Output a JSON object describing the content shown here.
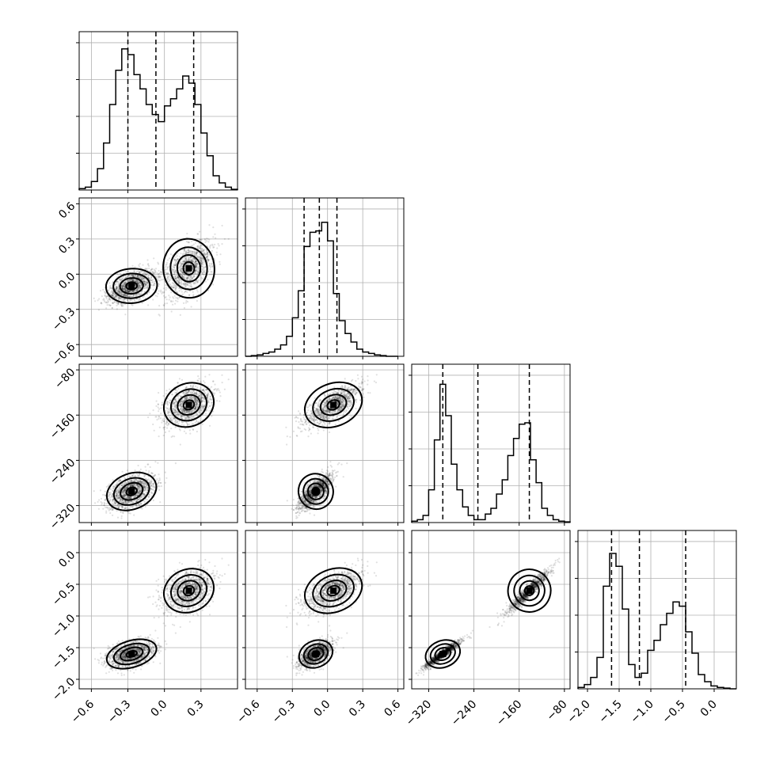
{
  "chart_data": {
    "type": "corner",
    "params": [
      {
        "id": "p0",
        "range": [
          -0.7,
          0.6
        ],
        "ticks": [
          -0.6,
          -0.3,
          0.0,
          0.3
        ],
        "tick_labels": [
          "−0.6",
          "−0.3",
          "0.0",
          "0.3"
        ],
        "quantiles": [
          -0.3,
          -0.07,
          0.24
        ],
        "hist_edges": [
          -0.7,
          -0.65,
          -0.6,
          -0.55,
          -0.5,
          -0.45,
          -0.4,
          -0.35,
          -0.3,
          -0.25,
          -0.2,
          -0.15,
          -0.1,
          -0.05,
          0.0,
          0.05,
          0.1,
          0.15,
          0.2,
          0.25,
          0.3,
          0.35,
          0.4,
          0.45,
          0.5,
          0.55,
          0.6
        ],
        "hist_counts": [
          0.01,
          0.02,
          0.06,
          0.15,
          0.33,
          0.6,
          0.84,
          0.99,
          0.95,
          0.81,
          0.71,
          0.6,
          0.53,
          0.48,
          0.59,
          0.64,
          0.71,
          0.8,
          0.75,
          0.6,
          0.4,
          0.24,
          0.1,
          0.05,
          0.02,
          0.005
        ]
      },
      {
        "id": "p1",
        "range": [
          -0.7,
          0.65
        ],
        "ticks": [
          -0.6,
          -0.3,
          0.0,
          0.3,
          0.6
        ],
        "tick_labels": [
          "−0.6",
          "−0.3",
          "0.0",
          "0.3",
          "0.6"
        ],
        "quantiles": [
          -0.2,
          -0.07,
          0.08
        ],
        "hist_edges": [
          -0.7,
          -0.65,
          -0.6,
          -0.55,
          -0.5,
          -0.45,
          -0.4,
          -0.35,
          -0.3,
          -0.25,
          -0.2,
          -0.15,
          -0.1,
          -0.05,
          0.0,
          0.05,
          0.1,
          0.15,
          0.2,
          0.25,
          0.3,
          0.35,
          0.4,
          0.45,
          0.5,
          0.55,
          0.6
        ],
        "hist_counts": [
          0.0,
          0.005,
          0.01,
          0.02,
          0.03,
          0.05,
          0.08,
          0.14,
          0.27,
          0.46,
          0.77,
          0.87,
          0.88,
          0.94,
          0.81,
          0.44,
          0.25,
          0.16,
          0.1,
          0.05,
          0.03,
          0.02,
          0.01,
          0.005,
          0.0,
          0.0
        ]
      },
      {
        "id": "p2",
        "range": [
          -350,
          -70
        ],
        "ticks": [
          -320,
          -240,
          -160,
          -80
        ],
        "tick_labels": [
          "−320",
          "−240",
          "−160",
          "−80"
        ],
        "quantiles": [
          -295,
          -233,
          -142
        ],
        "hist_edges": [
          -350,
          -340,
          -330,
          -320,
          -310,
          -300,
          -290,
          -280,
          -270,
          -260,
          -250,
          -240,
          -230,
          -220,
          -210,
          -200,
          -190,
          -180,
          -170,
          -160,
          -150,
          -140,
          -130,
          -120,
          -110,
          -100,
          -90,
          -80,
          -70
        ],
        "hist_counts": [
          0.01,
          0.02,
          0.05,
          0.23,
          0.58,
          0.97,
          0.75,
          0.41,
          0.23,
          0.11,
          0.05,
          0.02,
          0.02,
          0.06,
          0.1,
          0.2,
          0.3,
          0.47,
          0.59,
          0.69,
          0.7,
          0.44,
          0.28,
          0.1,
          0.05,
          0.02,
          0.01,
          0.005
        ]
      },
      {
        "id": "p3",
        "range": [
          -2.15,
          0.35
        ],
        "ticks": [
          -2.0,
          -1.5,
          -1.0,
          -0.5,
          0.0
        ],
        "tick_labels": [
          "−2.0",
          "−1.5",
          "−1.0",
          "−0.5",
          "0.0"
        ],
        "quantiles": [
          -1.62,
          -1.18,
          -0.45
        ],
        "hist_edges": [
          -2.15,
          -2.05,
          -1.95,
          -1.85,
          -1.75,
          -1.65,
          -1.55,
          -1.45,
          -1.35,
          -1.25,
          -1.15,
          -1.05,
          -0.95,
          -0.85,
          -0.75,
          -0.65,
          -0.55,
          -0.45,
          -0.35,
          -0.25,
          -0.15,
          -0.05,
          0.05,
          0.15,
          0.25,
          0.35
        ],
        "hist_counts": [
          0.01,
          0.03,
          0.08,
          0.22,
          0.72,
          0.95,
          0.86,
          0.56,
          0.17,
          0.08,
          0.11,
          0.27,
          0.34,
          0.45,
          0.53,
          0.61,
          0.58,
          0.4,
          0.25,
          0.1,
          0.05,
          0.02,
          0.01,
          0.005,
          0.0
        ]
      }
    ],
    "modes": [
      {
        "weight": 0.55,
        "mean": [
          -0.27,
          -0.1,
          -295,
          -1.6
        ],
        "sd": [
          0.1,
          0.07,
          15,
          0.1
        ]
      },
      {
        "weight": 0.45,
        "mean": [
          0.2,
          0.05,
          -142,
          -0.6
        ],
        "sd": [
          0.1,
          0.12,
          18,
          0.16
        ]
      }
    ]
  }
}
